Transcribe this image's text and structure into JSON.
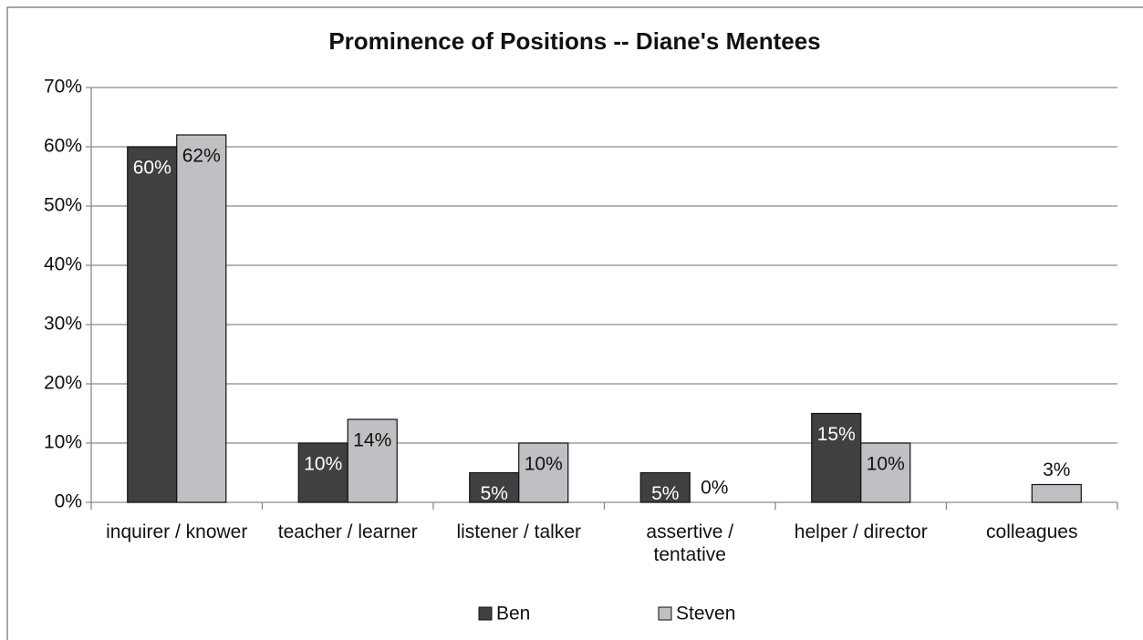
{
  "chart_data": {
    "type": "bar",
    "title": "Prominence of Positions -- Diane's Mentees",
    "categories": [
      "inquirer / knower",
      "teacher / learner",
      "listener / talker",
      "assertive / tentative",
      "helper / director",
      "colleagues"
    ],
    "series": [
      {
        "name": "Ben",
        "color": "#404040",
        "values": [
          60,
          10,
          5,
          5,
          15,
          null
        ],
        "value_labels": [
          "60%",
          "10%",
          "5%",
          "5%",
          "15%",
          null
        ]
      },
      {
        "name": "Steven",
        "color": "#c0c0c4",
        "values": [
          62,
          14,
          10,
          0,
          10,
          3
        ],
        "value_labels": [
          "62%",
          "14%",
          "10%",
          "0%",
          "10%",
          "3%"
        ]
      }
    ],
    "ylim": [
      0,
      70
    ],
    "yticks": [
      {
        "value": 0,
        "label": "0%"
      },
      {
        "value": 10,
        "label": "10%"
      },
      {
        "value": 20,
        "label": "20%"
      },
      {
        "value": 30,
        "label": "30%"
      },
      {
        "value": 40,
        "label": "40%"
      },
      {
        "value": 50,
        "label": "50%"
      },
      {
        "value": 60,
        "label": "60%"
      },
      {
        "value": 70,
        "label": "70%"
      }
    ],
    "grid": true,
    "legend": "bottom"
  }
}
